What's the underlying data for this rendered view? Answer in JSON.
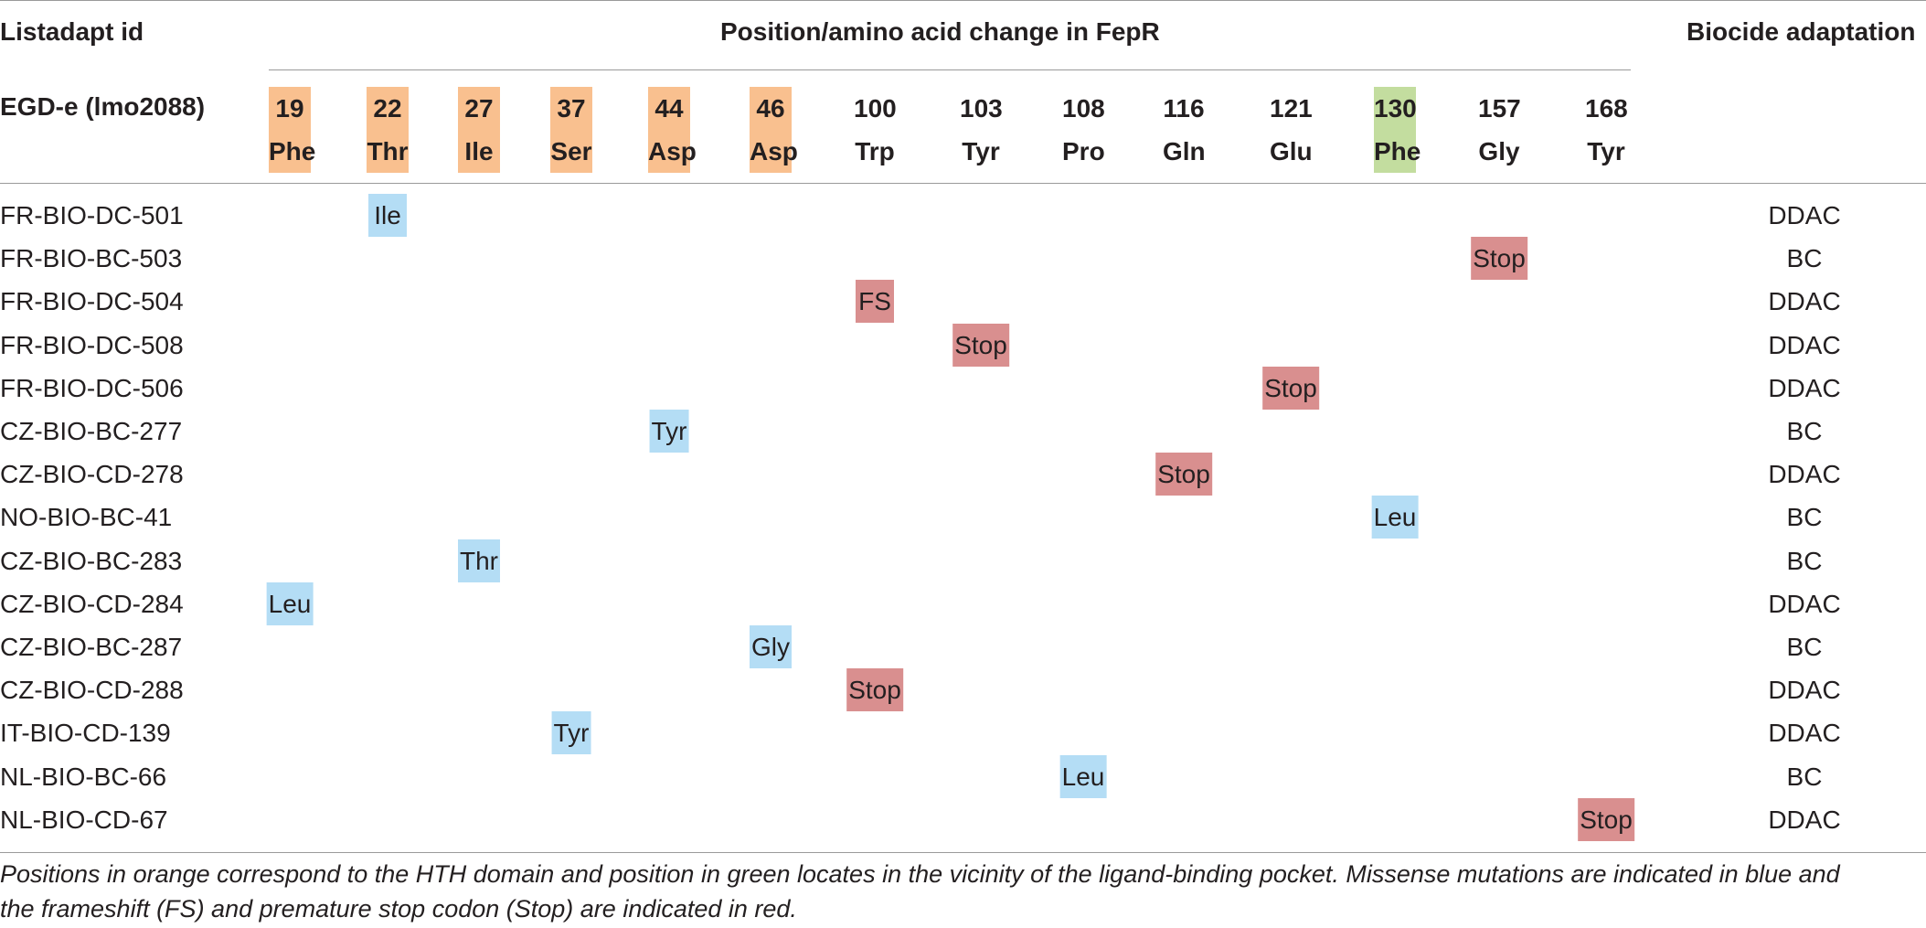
{
  "header": {
    "id_col_label": "Listadapt id",
    "group_label": "Position/amino acid change in FepR",
    "biocide_col_label": "Biocide adaptation",
    "reference_label": "EGD-e (lmo2088)"
  },
  "colors": {
    "hth_domain": "#f9c08f",
    "ligand_pocket": "#c3dd9f",
    "missense": "#b4ddf5",
    "frameshift_stop": "#d98f8f"
  },
  "positions": [
    {
      "pos": "19",
      "aa": "Phe",
      "region": "hth"
    },
    {
      "pos": "22",
      "aa": "Thr",
      "region": "hth"
    },
    {
      "pos": "27",
      "aa": "Ile",
      "region": "hth"
    },
    {
      "pos": "37",
      "aa": "Ser",
      "region": "hth"
    },
    {
      "pos": "44",
      "aa": "Asp",
      "region": "hth"
    },
    {
      "pos": "46",
      "aa": "Asp",
      "region": "hth"
    },
    {
      "pos": "100",
      "aa": "Trp",
      "region": ""
    },
    {
      "pos": "103",
      "aa": "Tyr",
      "region": ""
    },
    {
      "pos": "108",
      "aa": "Pro",
      "region": ""
    },
    {
      "pos": "116",
      "aa": "Gln",
      "region": ""
    },
    {
      "pos": "121",
      "aa": "Glu",
      "region": ""
    },
    {
      "pos": "130",
      "aa": "Phe",
      "region": "ligand"
    },
    {
      "pos": "157",
      "aa": "Gly",
      "region": ""
    },
    {
      "pos": "168",
      "aa": "Tyr",
      "region": ""
    }
  ],
  "rows": [
    {
      "id": "FR-BIO-DC-501",
      "biocide": "DDAC",
      "mutation": {
        "col": 1,
        "value": "Ile",
        "type": "missense"
      }
    },
    {
      "id": "FR-BIO-BC-503",
      "biocide": "BC",
      "mutation": {
        "col": 12,
        "value": "Stop",
        "type": "stop"
      }
    },
    {
      "id": "FR-BIO-DC-504",
      "biocide": "DDAC",
      "mutation": {
        "col": 6,
        "value": "FS",
        "type": "stop"
      }
    },
    {
      "id": "FR-BIO-DC-508",
      "biocide": "DDAC",
      "mutation": {
        "col": 7,
        "value": "Stop",
        "type": "stop"
      }
    },
    {
      "id": "FR-BIO-DC-506",
      "biocide": "DDAC",
      "mutation": {
        "col": 10,
        "value": "Stop",
        "type": "stop"
      }
    },
    {
      "id": "CZ-BIO-BC-277",
      "biocide": "BC",
      "mutation": {
        "col": 4,
        "value": "Tyr",
        "type": "missense"
      }
    },
    {
      "id": "CZ-BIO-CD-278",
      "biocide": "DDAC",
      "mutation": {
        "col": 9,
        "value": "Stop",
        "type": "stop"
      }
    },
    {
      "id": "NO-BIO-BC-41",
      "biocide": "BC",
      "mutation": {
        "col": 11,
        "value": "Leu",
        "type": "missense"
      }
    },
    {
      "id": "CZ-BIO-BC-283",
      "biocide": "BC",
      "mutation": {
        "col": 2,
        "value": "Thr",
        "type": "missense"
      }
    },
    {
      "id": "CZ-BIO-CD-284",
      "biocide": "DDAC",
      "mutation": {
        "col": 0,
        "value": "Leu",
        "type": "missense"
      }
    },
    {
      "id": "CZ-BIO-BC-287",
      "biocide": "BC",
      "mutation": {
        "col": 5,
        "value": "Gly",
        "type": "missense"
      }
    },
    {
      "id": "CZ-BIO-CD-288",
      "biocide": "DDAC",
      "mutation": {
        "col": 6,
        "value": "Stop",
        "type": "stop"
      }
    },
    {
      "id": "IT-BIO-CD-139",
      "biocide": "DDAC",
      "mutation": {
        "col": 3,
        "value": "Tyr",
        "type": "missense"
      }
    },
    {
      "id": "NL-BIO-BC-66",
      "biocide": "BC",
      "mutation": {
        "col": 8,
        "value": "Leu",
        "type": "missense"
      }
    },
    {
      "id": "NL-BIO-CD-67",
      "biocide": "DDAC",
      "mutation": {
        "col": 13,
        "value": "Stop",
        "type": "stop"
      }
    }
  ],
  "footnote": {
    "line1": "Positions in orange correspond to the HTH domain and position in green locates in the vicinity of the ligand-binding pocket. Missense mutations are indicated in blue and",
    "line2": "the frameshift (FS) and premature stop codon (Stop) are indicated in red."
  }
}
